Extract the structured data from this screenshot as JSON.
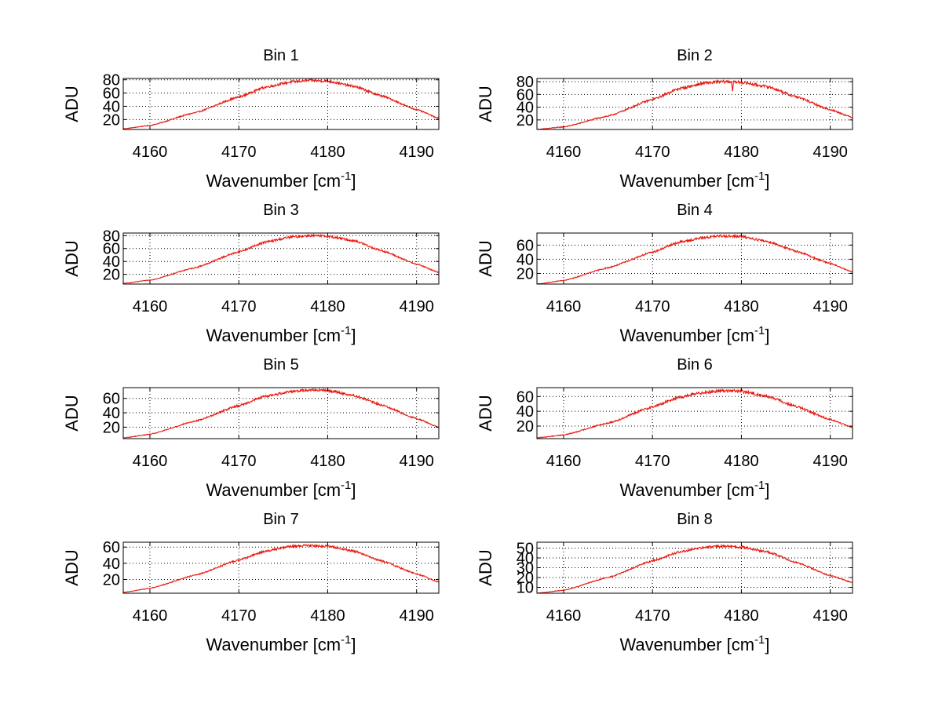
{
  "colors": {
    "background": "#ffffff",
    "axes": "#000000",
    "grid": "#000000",
    "series": "#e8190f",
    "series_noise": "#5a0a0a"
  },
  "chart_data": [
    {
      "type": "line",
      "title": "Bin 1",
      "xlabel_main": "Wavenumber [cm",
      "xlabel_sup": "-1",
      "xlabel_end": "]",
      "ylabel": "ADU",
      "xlim": [
        4157,
        4192.5
      ],
      "ylim": [
        5,
        82
      ],
      "grid": "dotted",
      "xticks": [
        4160,
        4170,
        4180,
        4190
      ],
      "yticks": [
        20,
        40,
        60,
        80
      ],
      "series": [
        {
          "name": "Bin 1",
          "x": [
            4157,
            4160,
            4165,
            4170,
            4173,
            4176,
            4178,
            4180,
            4183,
            4186,
            4190,
            4192.5
          ],
          "values": [
            6,
            11,
            30,
            54,
            69,
            77,
            79,
            78,
            70,
            56,
            35,
            22
          ],
          "noise": 1.6
        }
      ]
    },
    {
      "type": "line",
      "title": "Bin 2",
      "xlabel_main": "Wavenumber [cm",
      "xlabel_sup": "-1",
      "xlabel_end": "]",
      "ylabel": "ADU",
      "xlim": [
        4157,
        4192.5
      ],
      "ylim": [
        5,
        85
      ],
      "grid": "dotted",
      "xticks": [
        4160,
        4170,
        4180,
        4190
      ],
      "yticks": [
        20,
        40,
        60,
        80
      ],
      "series": [
        {
          "name": "Bin 2",
          "x": [
            4157,
            4160,
            4165,
            4170,
            4173,
            4176,
            4178,
            4180,
            4183,
            4186,
            4190,
            4192.5
          ],
          "values": [
            5,
            9,
            26,
            52,
            69,
            78,
            80,
            79,
            72,
            57,
            36,
            24
          ],
          "noise": 2.0,
          "dip_at": 4179,
          "dip_depth": 14
        }
      ]
    },
    {
      "type": "line",
      "title": "Bin 3",
      "xlabel_main": "Wavenumber [cm",
      "xlabel_sup": "-1",
      "xlabel_end": "]",
      "ylabel": "ADU",
      "xlim": [
        4157,
        4192.5
      ],
      "ylim": [
        5,
        84
      ],
      "grid": "dotted",
      "xticks": [
        4160,
        4170,
        4180,
        4190
      ],
      "yticks": [
        20,
        40,
        60,
        80
      ],
      "series": [
        {
          "name": "Bin 3",
          "x": [
            4157,
            4160,
            4165,
            4170,
            4173,
            4176,
            4178,
            4180,
            4183,
            4186,
            4190,
            4192.5
          ],
          "values": [
            6,
            11,
            30,
            55,
            70,
            78,
            80,
            79,
            72,
            57,
            36,
            23
          ],
          "noise": 1.6
        }
      ]
    },
    {
      "type": "line",
      "title": "Bin 4",
      "xlabel_main": "Wavenumber [cm",
      "xlabel_sup": "-1",
      "xlabel_end": "]",
      "ylabel": "ADU",
      "xlim": [
        4157,
        4192.5
      ],
      "ylim": [
        5,
        77
      ],
      "grid": "dotted",
      "xticks": [
        4160,
        4170,
        4180,
        4190
      ],
      "yticks": [
        20,
        40,
        60
      ],
      "series": [
        {
          "name": "Bin 4",
          "x": [
            4157,
            4160,
            4165,
            4170,
            4173,
            4176,
            4178,
            4180,
            4183,
            4186,
            4190,
            4192.5
          ],
          "values": [
            5,
            10,
            28,
            50,
            64,
            71,
            73,
            72,
            65,
            52,
            34,
            22
          ],
          "noise": 1.5
        }
      ]
    },
    {
      "type": "line",
      "title": "Bin 5",
      "xlabel_main": "Wavenumber [cm",
      "xlabel_sup": "-1",
      "xlabel_end": "]",
      "ylabel": "ADU",
      "xlim": [
        4157,
        4192.5
      ],
      "ylim": [
        4,
        75
      ],
      "grid": "dotted",
      "xticks": [
        4160,
        4170,
        4180,
        4190
      ],
      "yticks": [
        20,
        40,
        60
      ],
      "series": [
        {
          "name": "Bin 5",
          "x": [
            4157,
            4160,
            4165,
            4170,
            4173,
            4176,
            4178,
            4180,
            4183,
            4186,
            4190,
            4192.5
          ],
          "values": [
            5,
            10,
            28,
            50,
            63,
            70,
            72,
            71,
            64,
            51,
            32,
            20
          ],
          "noise": 1.5
        }
      ]
    },
    {
      "type": "line",
      "title": "Bin 6",
      "xlabel_main": "Wavenumber [cm",
      "xlabel_sup": "-1",
      "xlabel_end": "]",
      "ylabel": "ADU",
      "xlim": [
        4157,
        4192.5
      ],
      "ylim": [
        3,
        72
      ],
      "grid": "dotted",
      "xticks": [
        4160,
        4170,
        4180,
        4190
      ],
      "yticks": [
        20,
        40,
        60
      ],
      "series": [
        {
          "name": "Bin 6",
          "x": [
            4157,
            4160,
            4165,
            4170,
            4173,
            4176,
            4178,
            4180,
            4183,
            4186,
            4190,
            4192.5
          ],
          "values": [
            4,
            8,
            24,
            46,
            59,
            66,
            68,
            67,
            60,
            47,
            29,
            18
          ],
          "noise": 1.8
        }
      ]
    },
    {
      "type": "line",
      "title": "Bin 7",
      "xlabel_main": "Wavenumber [cm",
      "xlabel_sup": "-1",
      "xlabel_end": "]",
      "ylabel": "ADU",
      "xlim": [
        4157,
        4192.5
      ],
      "ylim": [
        3,
        66
      ],
      "grid": "dotted",
      "xticks": [
        4160,
        4170,
        4180,
        4190
      ],
      "yticks": [
        20,
        40,
        60
      ],
      "series": [
        {
          "name": "Bin 7",
          "x": [
            4157,
            4160,
            4165,
            4170,
            4173,
            4176,
            4178,
            4180,
            4183,
            4186,
            4190,
            4192.5
          ],
          "values": [
            4,
            9,
            25,
            44,
            55,
            61,
            62,
            61,
            55,
            43,
            27,
            17
          ],
          "noise": 1.2
        }
      ]
    },
    {
      "type": "line",
      "title": "Bin 8",
      "xlabel_main": "Wavenumber [cm",
      "xlabel_sup": "-1",
      "xlabel_end": "]",
      "ylabel": "ADU",
      "xlim": [
        4157,
        4192.5
      ],
      "ylim": [
        4,
        56
      ],
      "grid": "dotted",
      "xticks": [
        4160,
        4170,
        4180,
        4190
      ],
      "yticks": [
        10,
        20,
        30,
        40,
        50
      ],
      "series": [
        {
          "name": "Bin 8",
          "x": [
            4157,
            4160,
            4165,
            4170,
            4173,
            4176,
            4178,
            4180,
            4183,
            4186,
            4190,
            4192.5
          ],
          "values": [
            4,
            7,
            20,
            37,
            46,
            51,
            52,
            51,
            46,
            36,
            22,
            15
          ],
          "noise": 1.0
        }
      ]
    }
  ]
}
